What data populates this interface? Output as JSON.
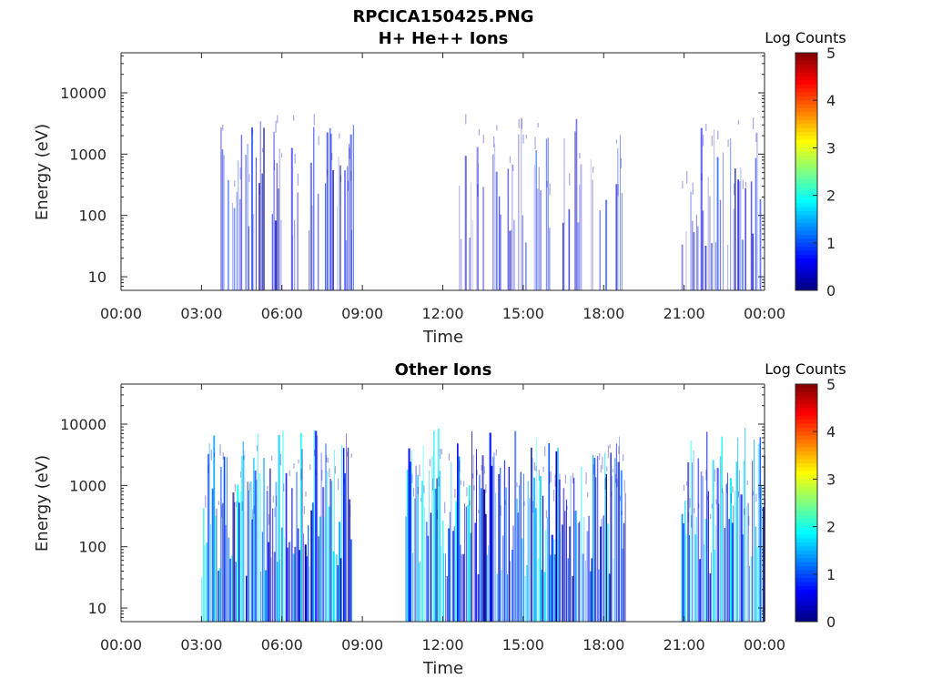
{
  "figure_title": "RPCICA150425.PNG",
  "chart_data": [
    {
      "type": "heatmap",
      "title": "H+ He++ Ions",
      "xlabel": "Time",
      "ylabel": "Energy (eV)",
      "x_ticks": [
        "00:00",
        "03:00",
        "06:00",
        "09:00",
        "12:00",
        "15:00",
        "18:00",
        "21:00",
        "00:00"
      ],
      "xlim_hours": [
        0,
        24
      ],
      "y_scale": "log",
      "y_ticks": [
        "10",
        "100",
        "1000",
        "10000"
      ],
      "ylim": [
        6,
        45000
      ],
      "colorbar": {
        "title": "Log Counts",
        "ticks": [
          "0",
          "1",
          "2",
          "3",
          "4",
          "5"
        ],
        "range": [
          0,
          5
        ],
        "colormap": "jet"
      },
      "activity_windows_hours": [
        [
          3.7,
          6.6
        ],
        [
          7.0,
          8.7
        ],
        [
          12.6,
          16.0
        ],
        [
          16.3,
          18.7
        ],
        [
          20.9,
          23.9
        ]
      ],
      "peak_log_counts": 1.0,
      "max_energy_eV": 4000
    },
    {
      "type": "heatmap",
      "title": "Other Ions",
      "xlabel": "Time",
      "ylabel": "Energy (eV)",
      "x_ticks": [
        "00:00",
        "03:00",
        "06:00",
        "09:00",
        "12:00",
        "15:00",
        "18:00",
        "21:00",
        "00:00"
      ],
      "xlim_hours": [
        0,
        24
      ],
      "y_scale": "log",
      "y_ticks": [
        "10",
        "100",
        "1000",
        "10000"
      ],
      "ylim": [
        6,
        45000
      ],
      "colorbar": {
        "title": "Log Counts",
        "ticks": [
          "0",
          "1",
          "2",
          "3",
          "4",
          "5"
        ],
        "range": [
          0,
          5
        ],
        "colormap": "jet"
      },
      "activity_windows_hours": [
        [
          3.0,
          8.6
        ],
        [
          10.6,
          18.8
        ],
        [
          20.9,
          24.0
        ]
      ],
      "peak_log_counts": 2.0,
      "max_energy_eV": 9000
    }
  ]
}
